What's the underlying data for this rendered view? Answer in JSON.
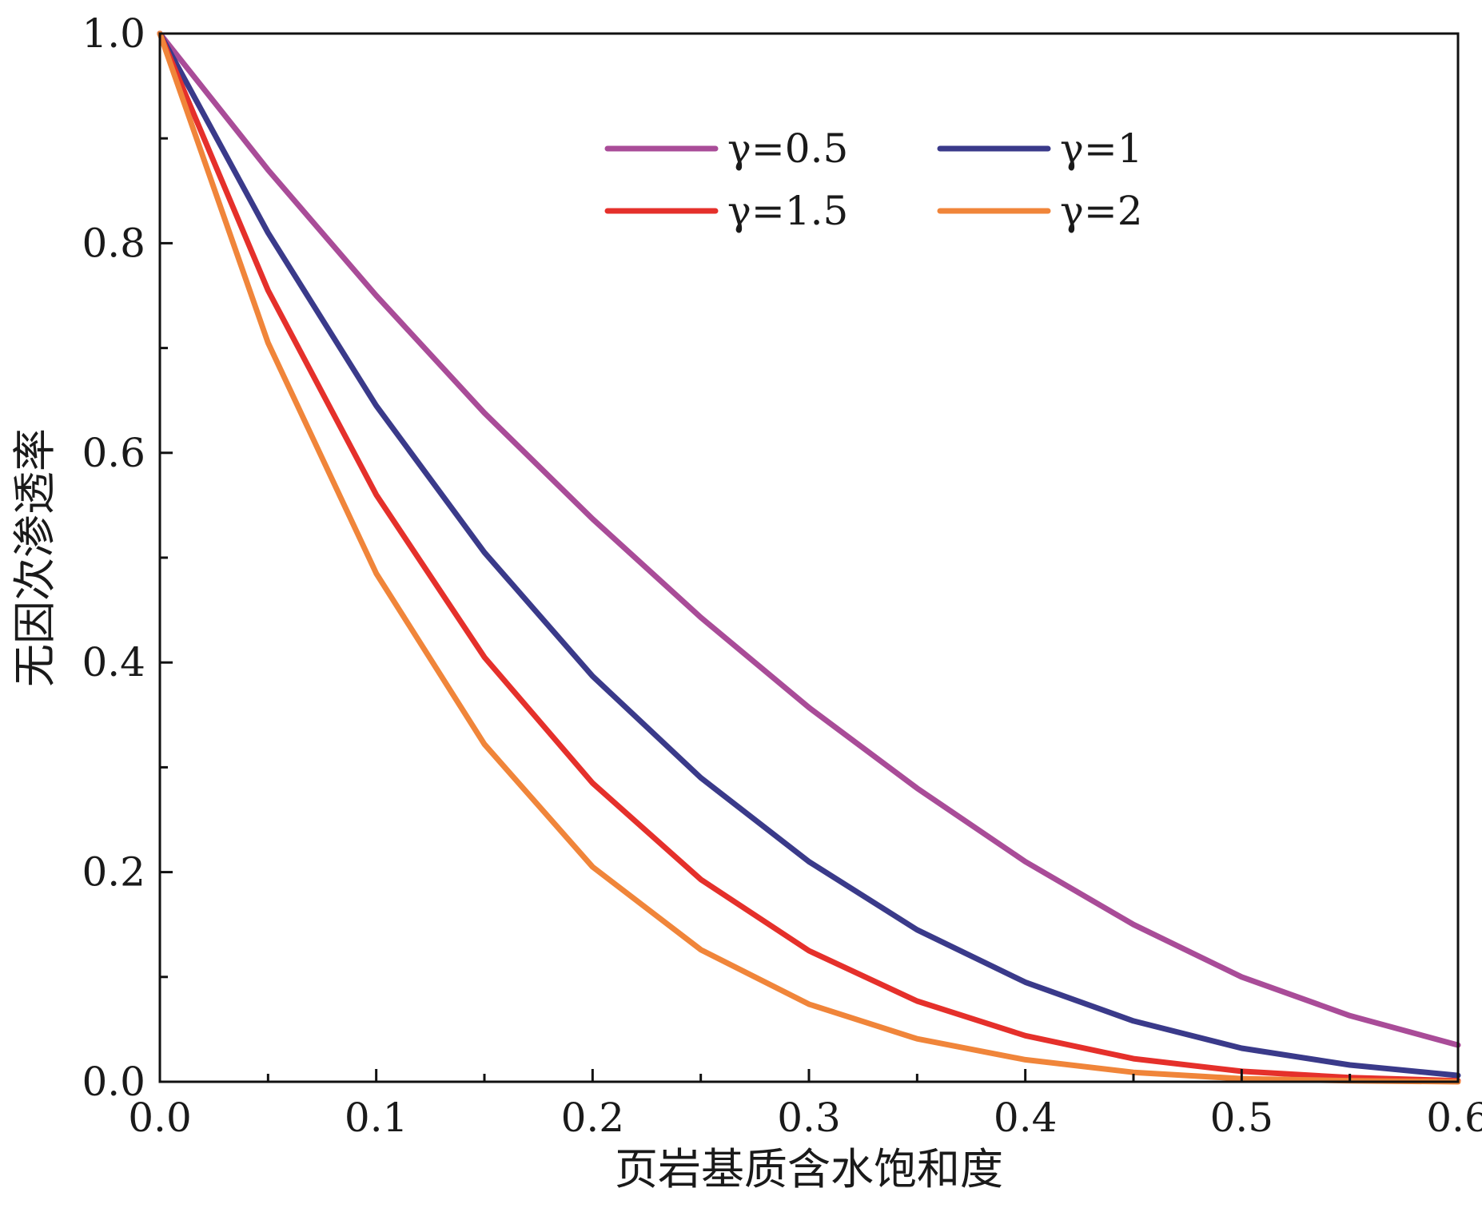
{
  "chart_data": {
    "type": "line",
    "title": "",
    "xlabel": "页岩基质含水饱和度",
    "ylabel": "无因次渗透率",
    "xlim": [
      0,
      0.6
    ],
    "ylim": [
      0,
      1.0
    ],
    "xticks": [
      0.0,
      0.1,
      0.2,
      0.3,
      0.4,
      0.5,
      0.6
    ],
    "yticks": [
      0.0,
      0.2,
      0.4,
      0.6,
      0.8,
      1.0
    ],
    "x_tick_labels": [
      "0.0",
      "0.1",
      "0.2",
      "0.3",
      "0.4",
      "0.5",
      "0.6"
    ],
    "y_tick_labels": [
      "0.0",
      "0.2",
      "0.4",
      "0.6",
      "0.8",
      "1.0"
    ],
    "grid": false,
    "legend_position": "top-center",
    "x": [
      0.0,
      0.05,
      0.1,
      0.15,
      0.2,
      0.25,
      0.3,
      0.35,
      0.4,
      0.45,
      0.5,
      0.55,
      0.6
    ],
    "series": [
      {
        "name": "γ=0.5",
        "color": "#a94c98",
        "values": [
          1.0,
          0.87,
          0.75,
          0.638,
          0.537,
          0.443,
          0.357,
          0.28,
          0.21,
          0.15,
          0.1,
          0.063,
          0.035
        ]
      },
      {
        "name": "γ=1",
        "color": "#3a3a8a",
        "values": [
          1.0,
          0.81,
          0.645,
          0.505,
          0.387,
          0.29,
          0.21,
          0.145,
          0.095,
          0.058,
          0.032,
          0.016,
          0.006
        ]
      },
      {
        "name": "γ=1.5",
        "color": "#e5302b",
        "values": [
          1.0,
          0.755,
          0.56,
          0.405,
          0.285,
          0.193,
          0.125,
          0.077,
          0.044,
          0.022,
          0.01,
          0.004,
          0.001
        ]
      },
      {
        "name": "γ=2",
        "color": "#f0853a",
        "values": [
          1.0,
          0.705,
          0.485,
          0.322,
          0.205,
          0.126,
          0.074,
          0.041,
          0.021,
          0.009,
          0.003,
          0.001,
          0.0
        ]
      }
    ]
  }
}
